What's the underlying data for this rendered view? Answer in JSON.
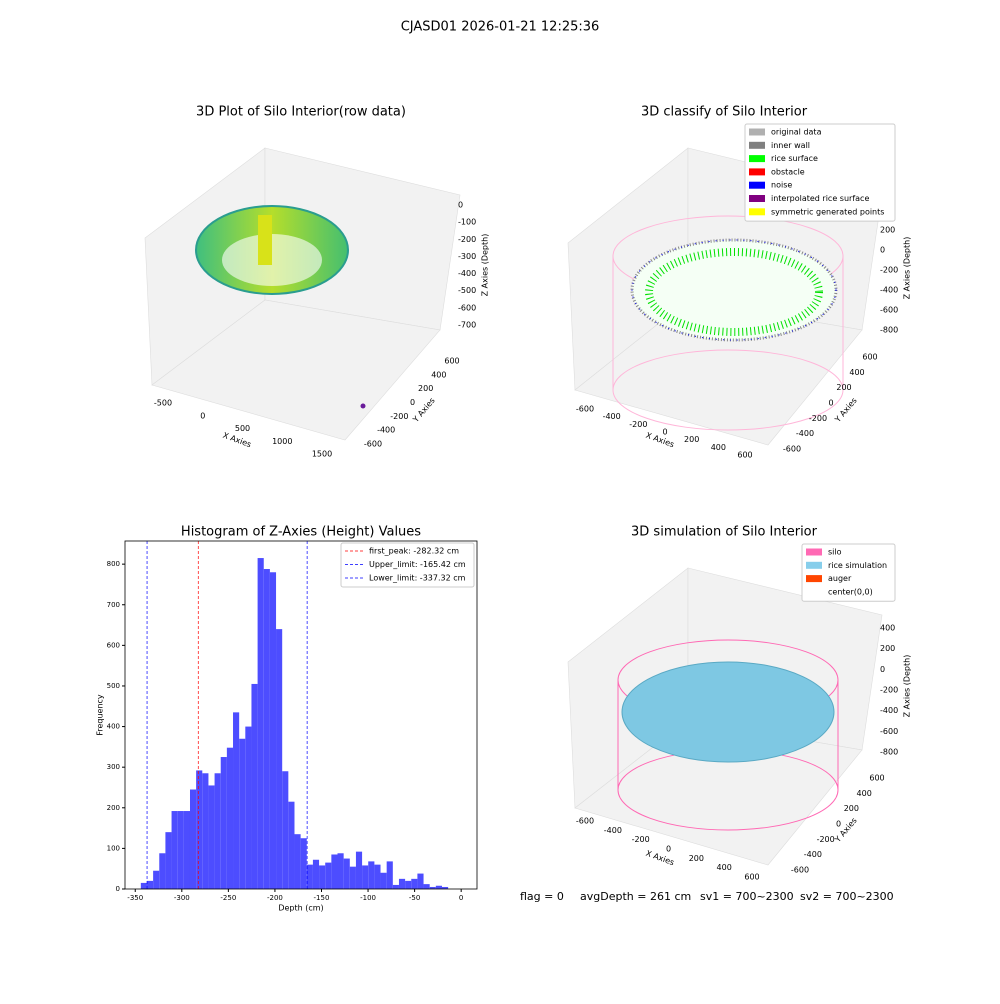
{
  "suptitle": "CJASD01 2026-01-21 12:25:36",
  "panels3d": [
    {
      "title": "3D Plot of Silo Interior(row data)",
      "xlabel": "X Axies",
      "ylabel": "Y Axies",
      "zlabel": "Z Axies (Depth)",
      "xticks": [
        -500,
        0,
        500,
        1000,
        1500
      ],
      "yticks": [
        -600,
        -400,
        -200,
        0,
        200,
        400,
        600
      ],
      "zticks": [
        0,
        -100,
        -200,
        -300,
        -400,
        -500,
        -600,
        -700
      ]
    },
    {
      "title": "3D classify of Silo Interior",
      "xlabel": "X Axies",
      "ylabel": "Y Axies",
      "zlabel": "Z Axies (Depth)",
      "xticks": [
        -600,
        -400,
        -200,
        0,
        200,
        400,
        600
      ],
      "yticks": [
        -600,
        -400,
        -200,
        0,
        200,
        400,
        600
      ],
      "zticks": [
        200,
        0,
        -200,
        -400,
        -600,
        -800
      ],
      "legend": [
        {
          "name": "original data",
          "color": "#b0b0b0"
        },
        {
          "name": "inner wall",
          "color": "#808080"
        },
        {
          "name": "rice surface",
          "color": "#00ff00"
        },
        {
          "name": "obstacle",
          "color": "#ff0000"
        },
        {
          "name": "noise",
          "color": "#0000ff"
        },
        {
          "name": "interpolated rice surface",
          "color": "#800080"
        },
        {
          "name": "symmetric generated points",
          "color": "#ffff00"
        }
      ]
    },
    {
      "title": "3D simulation of Silo Interior",
      "xlabel": "X Axies",
      "ylabel": "Y Axies",
      "zlabel": "Z Axies (Depth)",
      "xticks": [
        -600,
        -400,
        -200,
        0,
        200,
        400,
        600
      ],
      "yticks": [
        -600,
        -400,
        -200,
        0,
        200,
        400,
        600
      ],
      "zticks": [
        400,
        200,
        0,
        -200,
        -400,
        -600,
        -800
      ],
      "legend": [
        {
          "name": "silo",
          "color": "#ff69b4"
        },
        {
          "name": "rice simulation",
          "color": "#87ceeb"
        },
        {
          "name": "auger",
          "color": "#ff4500"
        },
        {
          "name": "center(0,0)",
          "color": "#ffffff"
        }
      ]
    }
  ],
  "chart_data": {
    "type": "histogram",
    "title": "Histogram of Z-Axies (Height) Values",
    "xlabel": "Depth (cm)",
    "ylabel": "Frequency",
    "color": "#4d4dff",
    "bins": [
      -344,
      -337.4,
      -330.8,
      -324.2,
      -317.6,
      -311,
      -304.4,
      -297.8,
      -291.2,
      -284.6,
      -278,
      -271.4,
      -264.8,
      -258.2,
      -251.6,
      -245,
      -238.4,
      -231.8,
      -225.2,
      -218.6,
      -212,
      -205.4,
      -198.8,
      -192.2,
      -185.6,
      -179,
      -172.4,
      -165.8,
      -159.2,
      -152.6,
      -146,
      -139.4,
      -132.8,
      -126.2,
      -119.6,
      -113,
      -106.4,
      -99.8,
      -93.2,
      -86.6,
      -80,
      -73.4,
      -66.8,
      -60.2,
      -53.6,
      -47,
      -40.4,
      -33.8,
      -27.2,
      -20.6,
      -14
    ],
    "values": [
      15,
      20,
      45,
      88,
      140,
      192,
      192,
      192,
      245,
      292,
      285,
      255,
      285,
      325,
      348,
      435,
      370,
      400,
      505,
      815,
      788,
      780,
      640,
      290,
      215,
      135,
      125,
      60,
      72,
      58,
      65,
      85,
      88,
      75,
      55,
      92,
      58,
      68,
      60,
      40,
      68,
      10,
      25,
      20,
      25,
      38,
      12,
      5,
      8,
      5
    ],
    "xlim": [
      -361,
      17
    ],
    "ylim": [
      0,
      857
    ],
    "xticks": [
      -350,
      -300,
      -250,
      -200,
      -150,
      -100,
      -50,
      0
    ],
    "yticks": [
      0,
      100,
      200,
      300,
      400,
      500,
      600,
      700,
      800
    ],
    "lines": [
      {
        "label": "first_peak: -282.32 cm",
        "value": -282.32,
        "color": "#ff0000"
      },
      {
        "label": "Upper_limit: -165.42 cm",
        "value": -165.42,
        "color": "#0000ff"
      },
      {
        "label": "Lower_limit: -337.32 cm",
        "value": -337.32,
        "color": "#0000ff"
      }
    ]
  },
  "footer": [
    "flag = 0",
    "avgDepth = 261 cm",
    "sv1 = 700~2300",
    "sv2 = 700~2300"
  ]
}
